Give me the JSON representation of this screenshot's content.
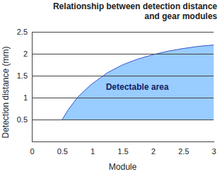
{
  "chart_data": {
    "type": "area",
    "title": [
      "Relationship between detection distance",
      "and gear modules"
    ],
    "x_label": "Module",
    "y_label": "Detection distance (mm)",
    "annotation": "Detectable area",
    "x": [
      0.5,
      0.6,
      0.75,
      0.9,
      1.0,
      1.25,
      1.5,
      1.75,
      2.0,
      2.25,
      2.5,
      2.75,
      3.0
    ],
    "values": [
      0.5,
      0.72,
      1.0,
      1.2,
      1.32,
      1.57,
      1.75,
      1.88,
      1.98,
      2.06,
      2.12,
      2.17,
      2.2
    ],
    "baseline": 0.5,
    "color": "#99ccff",
    "xlim": [
      0,
      3
    ],
    "ylim": [
      0,
      2.5
    ],
    "xticks": [
      0,
      0.5,
      1,
      1.5,
      2,
      2.5,
      3
    ],
    "yticks": [
      0.5,
      1,
      1.5,
      2,
      2.5
    ],
    "grid": true
  }
}
